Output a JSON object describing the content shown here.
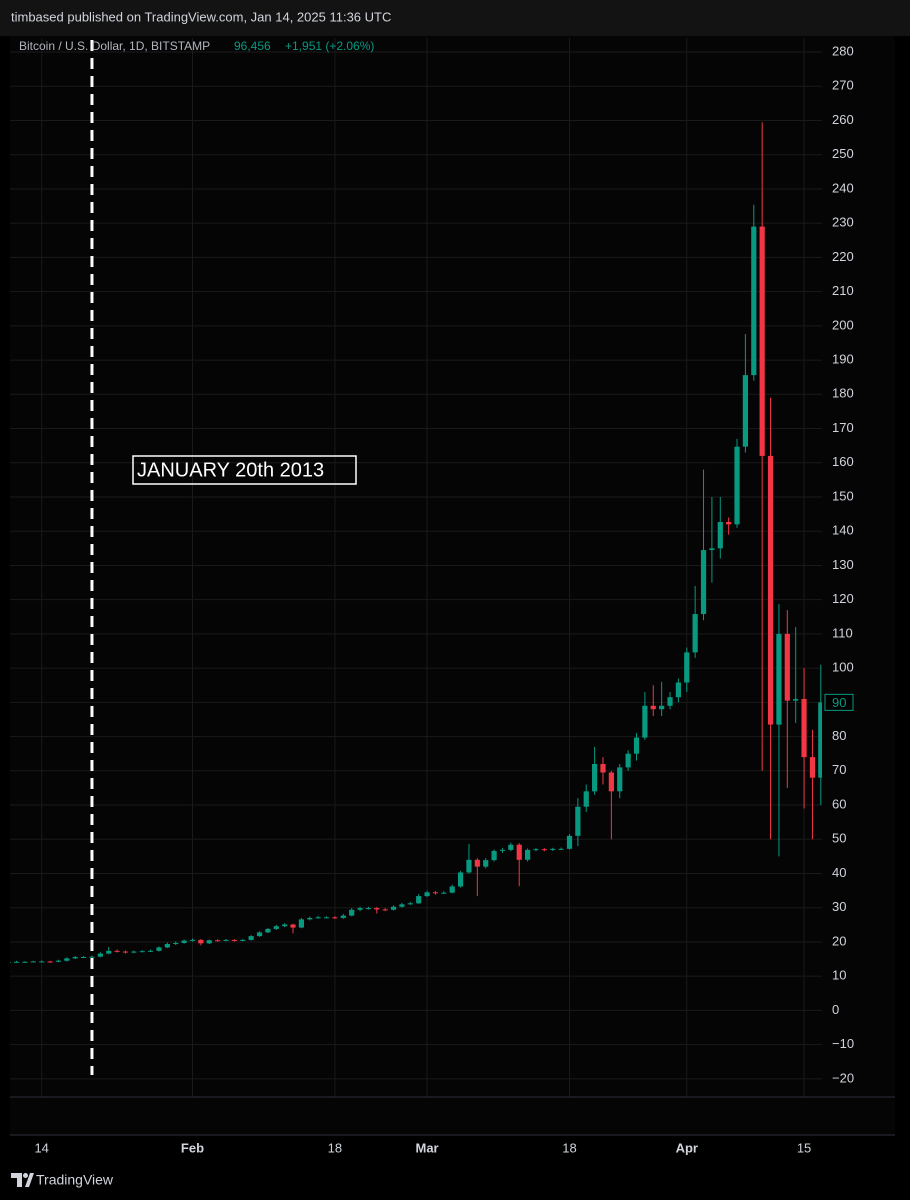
{
  "published_by": "timbased published on TradingView.com, Jan 14, 2025 11:36 UTC",
  "footer": "TradingView",
  "chart_data": {
    "type": "candlestick",
    "title": "Bitcoin / U.S. Dollar, 1D, BITSTAMP",
    "price": "96,456",
    "change": "+1,951 (+2.06%)",
    "annotation": {
      "text": "JANUARY 20th 2013",
      "x": "01-20"
    },
    "up_color": "#089981",
    "down_color": "#f23645",
    "grid": true,
    "last_price_label": 90,
    "xlim": [
      "01-10",
      "04-17"
    ],
    "ylim": [
      -25.3,
      284.1
    ],
    "yticks": [
      {
        "value": -20,
        "label": "−20"
      },
      {
        "value": -10,
        "label": "−10"
      },
      0,
      10,
      20,
      30,
      40,
      50,
      60,
      70,
      80,
      90,
      100,
      110,
      120,
      130,
      140,
      150,
      160,
      170,
      180,
      190,
      200,
      210,
      220,
      230,
      240,
      250,
      260,
      270,
      280
    ],
    "xticks": [
      {
        "value": "01-14",
        "label": "14"
      },
      {
        "value": "02-01",
        "label": "Feb"
      },
      {
        "value": "02-18",
        "label": "18"
      },
      {
        "value": "03-01",
        "label": "Mar"
      },
      {
        "value": "03-18",
        "label": "18"
      },
      {
        "value": "04-01",
        "label": "Apr"
      },
      {
        "value": "04-15",
        "label": "15"
      }
    ],
    "x": [
      "01-10",
      "01-11",
      "01-12",
      "01-13",
      "01-14",
      "01-15",
      "01-16",
      "01-17",
      "01-18",
      "01-19",
      "01-20",
      "01-21",
      "01-22",
      "01-23",
      "01-24",
      "01-25",
      "01-26",
      "01-27",
      "01-28",
      "01-29",
      "01-30",
      "01-31",
      "02-01",
      "02-02",
      "02-03",
      "02-04",
      "02-05",
      "02-06",
      "02-07",
      "02-08",
      "02-09",
      "02-10",
      "02-11",
      "02-12",
      "02-13",
      "02-14",
      "02-15",
      "02-16",
      "02-17",
      "02-18",
      "02-19",
      "02-20",
      "02-21",
      "02-22",
      "02-23",
      "02-24",
      "02-25",
      "02-26",
      "02-27",
      "02-28",
      "03-01",
      "03-02",
      "03-03",
      "03-04",
      "03-05",
      "03-06",
      "03-07",
      "03-08",
      "03-09",
      "03-10",
      "03-11",
      "03-12",
      "03-13",
      "03-14",
      "03-15",
      "03-16",
      "03-17",
      "03-18",
      "03-19",
      "03-20",
      "03-21",
      "03-22",
      "03-23",
      "03-24",
      "03-25",
      "03-26",
      "03-27",
      "03-28",
      "03-29",
      "03-30",
      "03-31",
      "04-01",
      "04-02",
      "04-03",
      "04-04",
      "04-05",
      "04-06",
      "04-07",
      "04-08",
      "04-09",
      "04-10",
      "04-11",
      "04-12",
      "04-13",
      "04-14",
      "04-15",
      "04-16",
      "04-17"
    ],
    "open": [
      14.0,
      14.1,
      14.2,
      14.2,
      14.3,
      14.3,
      14.2,
      14.5,
      15.2,
      15.6,
      15.6,
      15.7,
      16.6,
      17.4,
      17.2,
      16.9,
      17.2,
      17.3,
      17.4,
      18.4,
      19.4,
      19.7,
      20.4,
      20.6,
      19.6,
      20.5,
      20.4,
      20.6,
      20.4,
      20.6,
      21.7,
      22.8,
      23.8,
      24.6,
      25.1,
      24.2,
      26.6,
      27.0,
      27.2,
      27.2,
      27.0,
      27.7,
      29.4,
      29.9,
      29.9,
      29.5,
      29.4,
      30.3,
      31.0,
      31.3,
      33.4,
      34.5,
      34.3,
      34.4,
      36.2,
      40.3,
      44.0,
      42.0,
      43.9,
      46.6,
      46.9,
      48.4,
      44.0,
      46.9,
      47.1,
      46.9,
      47.2,
      47.2,
      51,
      59.5,
      64,
      72,
      69.5,
      64,
      71,
      75,
      79.7,
      89,
      88,
      89,
      91.5,
      95.8,
      104.6,
      115.8,
      134.5,
      135,
      142.7,
      142,
      164.7,
      185.6,
      229,
      162,
      83.5,
      110,
      90.5,
      91,
      74,
      68
    ],
    "high": [
      14.4,
      14.5,
      14.4,
      14.5,
      14.6,
      14.5,
      14.8,
      15.5,
      15.9,
      15.9,
      16.0,
      17.0,
      18.5,
      17.8,
      17.5,
      17.5,
      17.6,
      17.8,
      18.7,
      19.8,
      20.2,
      20.7,
      21.0,
      20.8,
      20.7,
      20.8,
      20.9,
      20.8,
      20.9,
      22.0,
      23.1,
      24.1,
      25.0,
      25.5,
      25.3,
      27.0,
      27.4,
      27.6,
      27.5,
      27.5,
      28.2,
      29.9,
      30.3,
      30.3,
      30.2,
      29.9,
      30.7,
      31.4,
      31.7,
      34.0,
      35.0,
      34.9,
      34.8,
      36.7,
      40.8,
      48.6,
      44.5,
      44.5,
      47.0,
      47.5,
      49.0,
      48.9,
      47.3,
      47.5,
      47.4,
      47.5,
      47.6,
      51.5,
      62,
      66,
      77,
      74,
      70,
      72,
      76,
      81,
      93,
      95,
      96,
      93,
      97,
      106,
      124,
      158,
      150,
      150,
      144,
      167,
      197.6,
      235.4,
      259.5,
      179,
      118.7,
      117,
      112,
      100,
      82,
      101
    ],
    "low": [
      13.8,
      13.9,
      14.0,
      14.0,
      14.1,
      13.9,
      14.1,
      14.3,
      15.0,
      15.3,
      15.4,
      15.5,
      16.4,
      16.9,
      16.6,
      16.7,
      17.0,
      17.1,
      17.2,
      18.2,
      19.1,
      19.5,
      20.1,
      19.0,
      19.4,
      20.1,
      20.2,
      20.1,
      20.2,
      20.4,
      21.5,
      22.6,
      23.5,
      24.3,
      22.5,
      24.0,
      26.3,
      26.8,
      26.9,
      26.7,
      26.8,
      27.5,
      29.0,
      29.5,
      28.3,
      29.0,
      29.2,
      30.0,
      30.8,
      31.1,
      33.1,
      33.8,
      34.0,
      34.2,
      35.9,
      40.0,
      33.4,
      41.5,
      43.5,
      46.0,
      46.5,
      36.3,
      43.5,
      46.5,
      46.5,
      46.6,
      46.9,
      47.0,
      48,
      58,
      63,
      66,
      50,
      62,
      70,
      73,
      79,
      86,
      86,
      88,
      90,
      93,
      103,
      114,
      125,
      132,
      139,
      141,
      163,
      184,
      70,
      50,
      45,
      65,
      84,
      59,
      50,
      60
    ],
    "close": [
      14.1,
      14.2,
      14.2,
      14.3,
      14.3,
      14.2,
      14.5,
      15.2,
      15.6,
      15.6,
      15.7,
      16.6,
      17.4,
      17.2,
      16.9,
      17.2,
      17.3,
      17.4,
      18.4,
      19.4,
      19.7,
      20.4,
      20.6,
      19.6,
      20.5,
      20.4,
      20.6,
      20.4,
      20.6,
      21.7,
      22.8,
      23.8,
      24.6,
      25.1,
      24.2,
      26.6,
      27.0,
      27.2,
      27.2,
      27.0,
      27.7,
      29.4,
      29.9,
      29.9,
      29.5,
      29.4,
      30.3,
      31.0,
      31.3,
      33.4,
      34.5,
      34.3,
      34.4,
      36.2,
      40.3,
      44.0,
      42.0,
      43.9,
      46.6,
      46.9,
      48.4,
      44.0,
      46.9,
      47.1,
      46.9,
      47.2,
      47.2,
      51,
      59.5,
      64,
      72,
      69.5,
      64,
      71,
      75,
      79.7,
      89,
      88,
      89,
      91.5,
      95.8,
      104.6,
      115.8,
      134.5,
      135,
      142.7,
      142,
      164.7,
      185.6,
      229,
      162,
      83.5,
      110,
      90.5,
      91,
      74,
      68,
      90
    ]
  }
}
